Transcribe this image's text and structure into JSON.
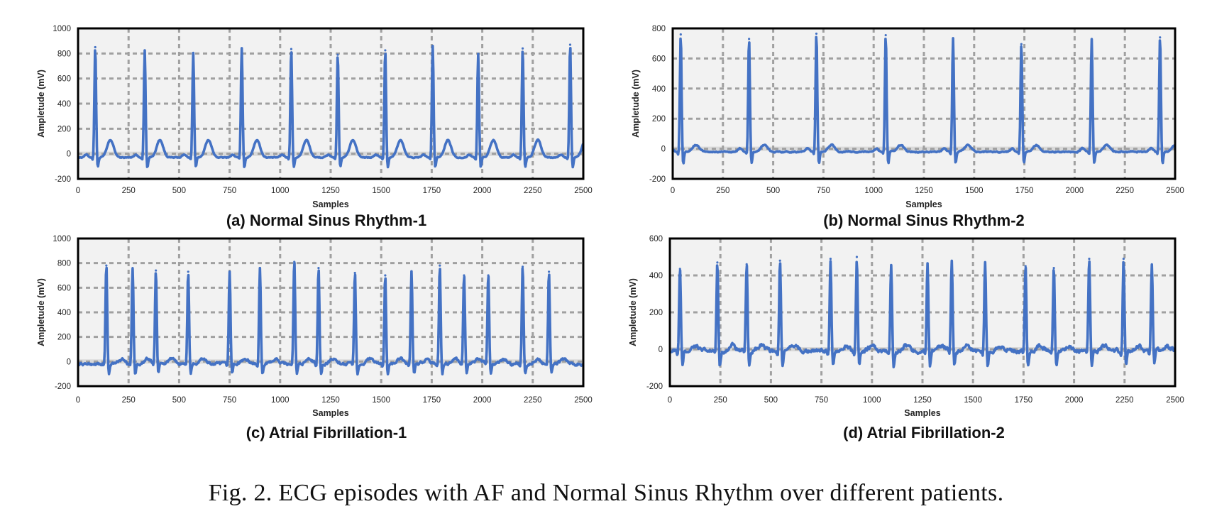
{
  "caption": "Fig. 2.  ECG episodes with AF and Normal Sinus Rhythm over different patients.",
  "colors": {
    "line": "#4472c4",
    "plot_bg": "#f2f2f2",
    "grid": "#a0a0a0",
    "frame": "#000000",
    "zero_band": "#d9d9d9"
  },
  "chart_data": [
    {
      "type": "line",
      "subcaption": "(a) Normal Sinus Rhythm-1",
      "xlabel": "Samples",
      "ylabel": "Ampletude (mV)",
      "xlim": [
        0,
        2500
      ],
      "ylim": [
        -200,
        1000
      ],
      "xticks": [
        0,
        250,
        500,
        750,
        1000,
        1250,
        1500,
        1750,
        2000,
        2250,
        2500
      ],
      "yticks": [
        -200,
        0,
        200,
        400,
        600,
        800,
        1000
      ],
      "grid": true,
      "series": [
        {
          "r_peaks": [
            {
              "x": 85,
              "y": 850
            },
            {
              "x": 330,
              "y": 825
            },
            {
              "x": 570,
              "y": 805
            },
            {
              "x": 810,
              "y": 840
            },
            {
              "x": 1055,
              "y": 835
            },
            {
              "x": 1285,
              "y": 790
            },
            {
              "x": 1520,
              "y": 825
            },
            {
              "x": 1755,
              "y": 860
            },
            {
              "x": 1980,
              "y": 795
            },
            {
              "x": 2200,
              "y": 840
            },
            {
              "x": 2435,
              "y": 870
            }
          ],
          "t_wave_amplitude": 140,
          "baseline": -30
        }
      ]
    },
    {
      "type": "line",
      "subcaption": "(b) Normal Sinus Rhythm-2",
      "xlabel": "Samples",
      "ylabel": "Ampletude (mV)",
      "xlim": [
        0,
        2500
      ],
      "ylim": [
        -200,
        800
      ],
      "xticks": [
        0,
        250,
        500,
        750,
        1000,
        1250,
        1500,
        1750,
        2000,
        2250,
        2500
      ],
      "yticks": [
        -200,
        0,
        200,
        400,
        600,
        800
      ],
      "grid": true,
      "series": [
        {
          "r_peaks": [
            {
              "x": 40,
              "y": 760
            },
            {
              "x": 380,
              "y": 730
            },
            {
              "x": 715,
              "y": 765
            },
            {
              "x": 1060,
              "y": 755
            },
            {
              "x": 1395,
              "y": 735
            },
            {
              "x": 1735,
              "y": 695
            },
            {
              "x": 2085,
              "y": 730
            },
            {
              "x": 2425,
              "y": 740
            }
          ],
          "t_wave_amplitude": 45,
          "baseline": -20
        }
      ]
    },
    {
      "type": "line",
      "subcaption": "(c) Atrial Fibrillation-1",
      "xlabel": "Samples",
      "ylabel": "Ampletude (mV)",
      "xlim": [
        0,
        2500
      ],
      "ylim": [
        -200,
        1000
      ],
      "xticks": [
        0,
        250,
        500,
        750,
        1000,
        1250,
        1500,
        1750,
        2000,
        2250,
        2500
      ],
      "yticks": [
        -200,
        0,
        200,
        400,
        600,
        800,
        1000
      ],
      "grid": true,
      "series": [
        {
          "r_peaks": [
            {
              "x": 140,
              "y": 780
            },
            {
              "x": 270,
              "y": 760
            },
            {
              "x": 385,
              "y": 740
            },
            {
              "x": 545,
              "y": 730
            },
            {
              "x": 750,
              "y": 730
            },
            {
              "x": 900,
              "y": 760
            },
            {
              "x": 1070,
              "y": 810
            },
            {
              "x": 1190,
              "y": 760
            },
            {
              "x": 1370,
              "y": 720
            },
            {
              "x": 1520,
              "y": 700
            },
            {
              "x": 1650,
              "y": 730
            },
            {
              "x": 1790,
              "y": 780
            },
            {
              "x": 1910,
              "y": 700
            },
            {
              "x": 2030,
              "y": 700
            },
            {
              "x": 2200,
              "y": 770
            },
            {
              "x": 2330,
              "y": 730
            }
          ],
          "t_wave_amplitude": 40,
          "baseline": -20
        }
      ]
    },
    {
      "type": "line",
      "subcaption": "(d) Atrial Fibrillation-2",
      "xlabel": "Samples",
      "ylabel": "Ampletude (mV)",
      "xlim": [
        0,
        2500
      ],
      "ylim": [
        -200,
        600
      ],
      "xticks": [
        0,
        250,
        500,
        750,
        1000,
        1250,
        1500,
        1750,
        2000,
        2250,
        2500
      ],
      "yticks": [
        -200,
        0,
        200,
        400,
        600
      ],
      "grid": true,
      "series": [
        {
          "r_peaks": [
            {
              "x": 50,
              "y": 435
            },
            {
              "x": 235,
              "y": 470
            },
            {
              "x": 380,
              "y": 460
            },
            {
              "x": 545,
              "y": 480
            },
            {
              "x": 795,
              "y": 490
            },
            {
              "x": 925,
              "y": 500
            },
            {
              "x": 1095,
              "y": 450
            },
            {
              "x": 1275,
              "y": 465
            },
            {
              "x": 1395,
              "y": 480
            },
            {
              "x": 1560,
              "y": 470
            },
            {
              "x": 1760,
              "y": 450
            },
            {
              "x": 1900,
              "y": 440
            },
            {
              "x": 2075,
              "y": 490
            },
            {
              "x": 2245,
              "y": 490
            },
            {
              "x": 2385,
              "y": 460
            }
          ],
          "t_wave_amplitude": 30,
          "baseline": -10
        }
      ]
    }
  ]
}
